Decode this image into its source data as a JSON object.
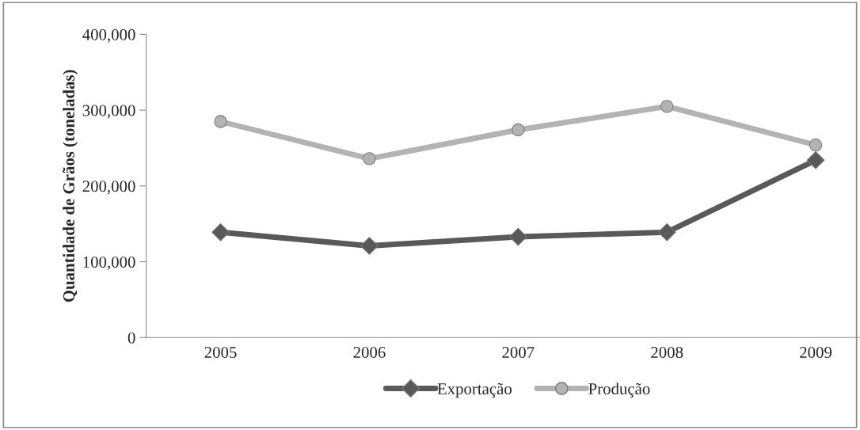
{
  "chart_data": {
    "type": "line",
    "ylabel": "Quantidade de Grãos (toneladas)",
    "categories": [
      "2005",
      "2006",
      "2007",
      "2008",
      "2009"
    ],
    "series": [
      {
        "name": "Exportação",
        "color": "#595959",
        "marker": "diamond",
        "values": [
          139000,
          121000,
          133000,
          139000,
          234000
        ]
      },
      {
        "name": "Produção",
        "color": "#b3b3b3",
        "marker": "circle",
        "values": [
          285000,
          236000,
          274000,
          305000,
          254000
        ]
      }
    ],
    "ylim": [
      0,
      400000
    ],
    "yticks": [
      {
        "value": 0,
        "label": "0"
      },
      {
        "value": 100000,
        "label": "100,000"
      },
      {
        "value": 200000,
        "label": "200,000"
      },
      {
        "value": 300000,
        "label": "300,000"
      },
      {
        "value": 400000,
        "label": "400,000"
      }
    ],
    "grid": false,
    "legend": "bottom"
  }
}
